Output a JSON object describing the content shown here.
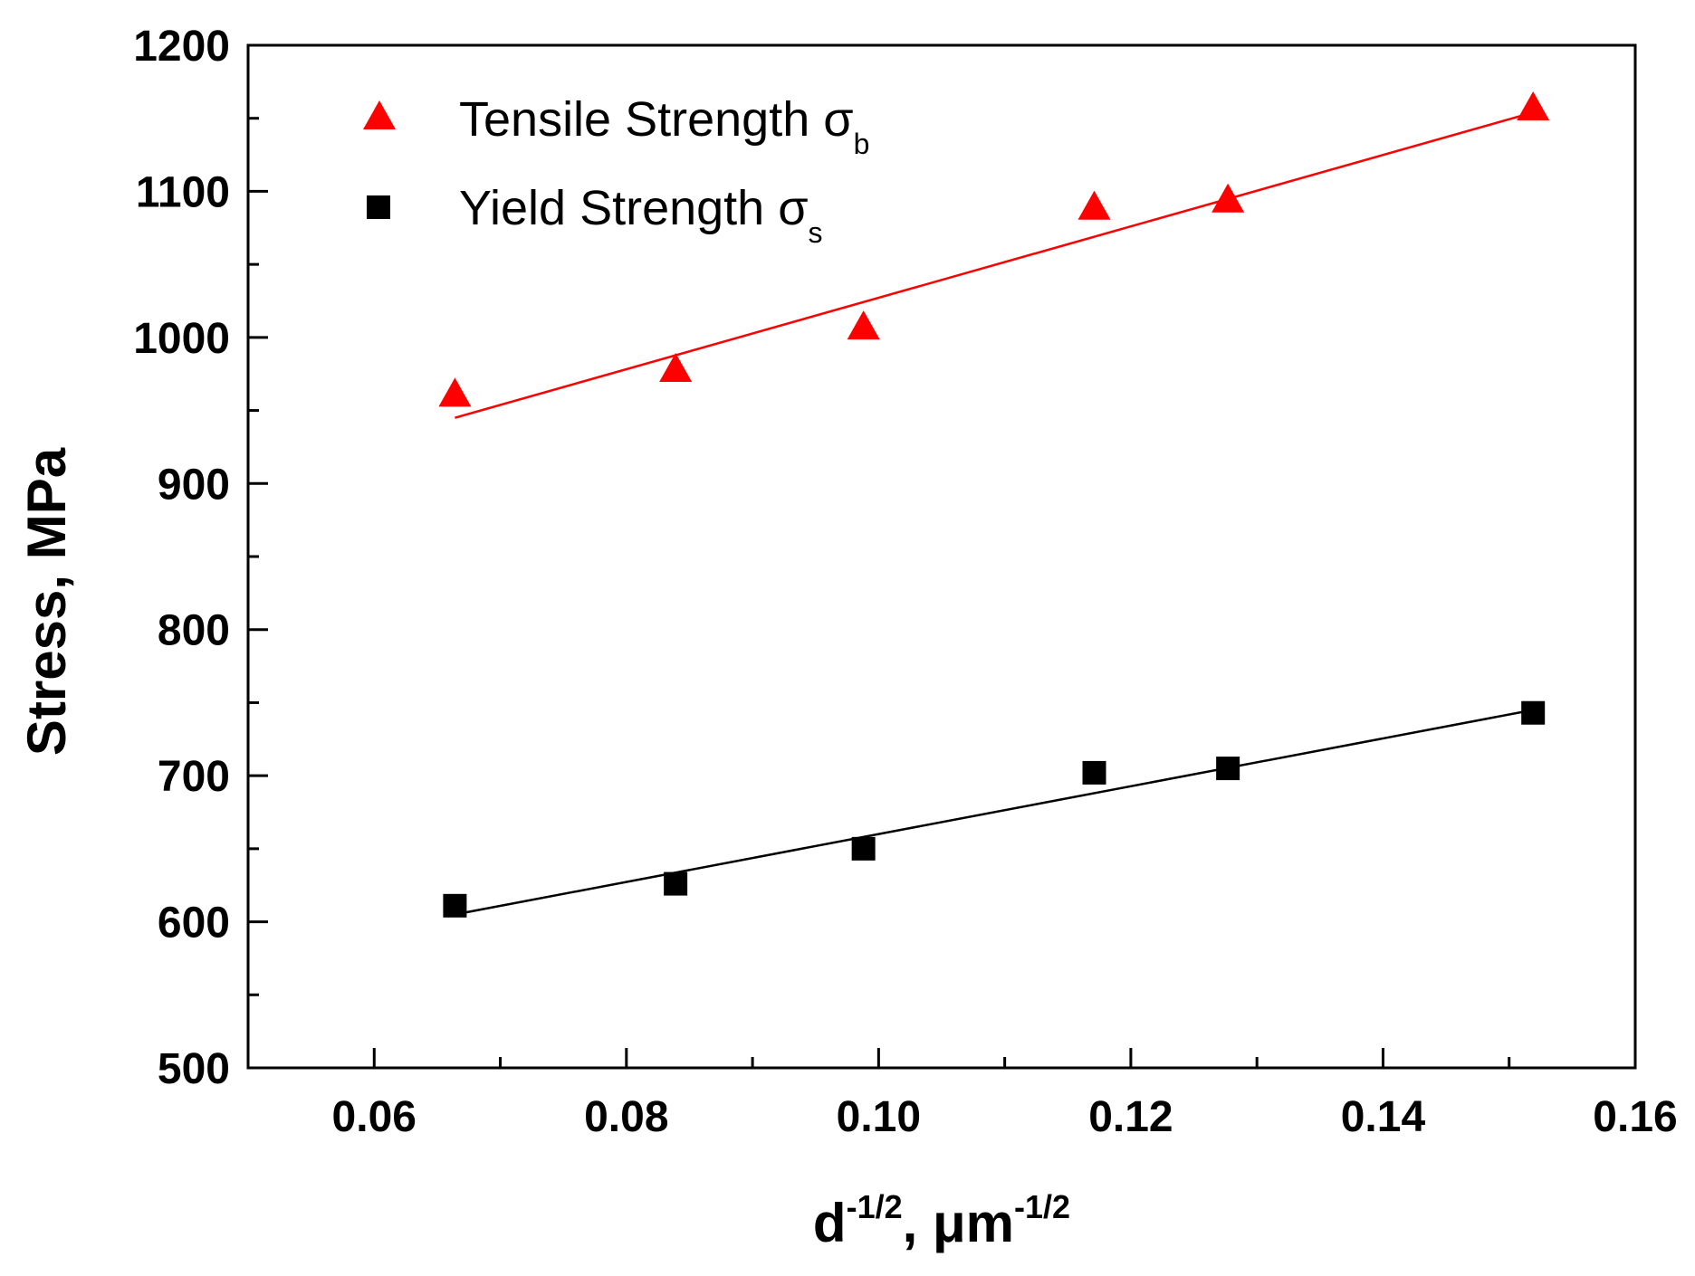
{
  "chart_data": {
    "type": "scatter",
    "title": "",
    "xlabel": {
      "base": "d",
      "sup": "-1/2",
      "sep": ", μm",
      "sup2": "-1/2"
    },
    "ylabel": "Stress, MPa",
    "xlim": [
      0.05,
      0.16
    ],
    "ylim": [
      500,
      1200
    ],
    "xticks": [
      0.06,
      0.08,
      0.1,
      0.12,
      0.14,
      0.16
    ],
    "xtick_labels": [
      "0.06",
      "0.08",
      "0.10",
      "0.12",
      "0.14",
      "0.16"
    ],
    "xminor": [
      0.05,
      0.07,
      0.09,
      0.11,
      0.13,
      0.15
    ],
    "yticks": [
      500,
      600,
      700,
      800,
      900,
      1000,
      1100,
      1200
    ],
    "ytick_labels": [
      "500",
      "600",
      "700",
      "800",
      "900",
      "1000",
      "1100",
      "1200"
    ],
    "yminor": [
      550,
      650,
      750,
      850,
      950,
      1050,
      1150
    ],
    "legend_position": "top-left",
    "series": [
      {
        "name": "Tensile Strength σ",
        "name_sub": "b",
        "marker": "triangle",
        "color": "#ff0000",
        "x": [
          0.0664,
          0.0839,
          0.0988,
          0.1171,
          0.1277,
          0.1519
        ],
        "y": [
          960,
          977,
          1006,
          1088,
          1093,
          1156
        ],
        "fit": {
          "x": [
            0.0664,
            0.1519
          ],
          "y": [
            945,
            1154
          ]
        }
      },
      {
        "name": "Yield Strength σ",
        "name_sub": "s",
        "marker": "square",
        "color": "#000000",
        "x": [
          0.0664,
          0.0839,
          0.0988,
          0.1171,
          0.1277,
          0.1519
        ],
        "y": [
          611,
          626,
          650,
          702,
          705,
          743
        ],
        "fit": {
          "x": [
            0.0664,
            0.1519
          ],
          "y": [
            605,
            745
          ]
        }
      }
    ]
  }
}
